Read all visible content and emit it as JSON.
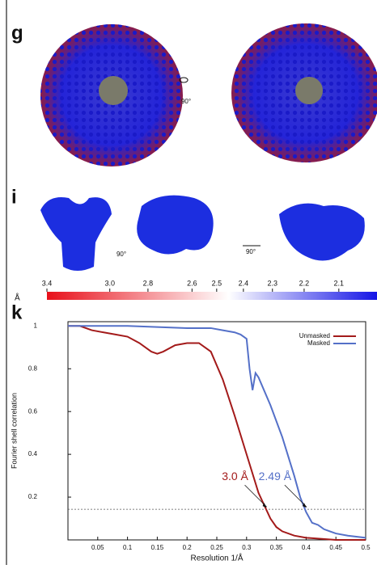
{
  "panels": [
    {
      "label": "g",
      "rotation": "90°"
    },
    {
      "label": "i",
      "rotations": [
        "90°",
        "90°"
      ]
    },
    {
      "label": "k"
    }
  ],
  "colorbar": {
    "unit": "Å",
    "scale": "reciprocal",
    "lim": [
      3.4,
      2.0
    ],
    "colors": [
      "#e8101a",
      "#ffffff",
      "#1414e6"
    ],
    "color_stops": [
      0,
      0.55,
      1
    ],
    "ticks": [
      3.4,
      {
        "value": 3.0,
        "label": "3.0"
      },
      2.8,
      2.6,
      2.5,
      2.4,
      2.3,
      2.2,
      2.1
    ]
  },
  "chart_data": {
    "type": "line",
    "xlabel": "Resolution 1/Å",
    "ylabel": "Fourier shell correlation",
    "xlim": [
      0,
      0.5
    ],
    "ylim": [
      0,
      1.02
    ],
    "xticks": [
      0.05,
      0.1,
      0.15,
      0.2,
      0.25,
      0.3,
      0.35,
      0.4,
      0.45,
      0.5
    ],
    "yticks": [
      0.2,
      0.4,
      0.6,
      0.8,
      1
    ],
    "reference_line": 0.143,
    "legend": "upper right",
    "series": [
      {
        "name": "Unmasked",
        "color": "#a31a1a",
        "x": [
          0,
          0.02,
          0.04,
          0.06,
          0.08,
          0.1,
          0.12,
          0.14,
          0.15,
          0.16,
          0.18,
          0.2,
          0.22,
          0.24,
          0.26,
          0.28,
          0.3,
          0.32,
          0.33,
          0.34,
          0.35,
          0.36,
          0.38,
          0.4,
          0.45,
          0.5
        ],
        "values": [
          1,
          1,
          0.98,
          0.97,
          0.96,
          0.95,
          0.92,
          0.88,
          0.87,
          0.88,
          0.91,
          0.92,
          0.92,
          0.88,
          0.75,
          0.58,
          0.4,
          0.22,
          0.16,
          0.1,
          0.06,
          0.04,
          0.02,
          0.01,
          0,
          0
        ]
      },
      {
        "name": "Masked",
        "color": "#5470c8",
        "x": [
          0,
          0.1,
          0.2,
          0.24,
          0.26,
          0.28,
          0.29,
          0.3,
          0.305,
          0.31,
          0.315,
          0.32,
          0.34,
          0.36,
          0.38,
          0.39,
          0.4,
          0.41,
          0.42,
          0.43,
          0.44,
          0.45,
          0.47,
          0.5
        ],
        "values": [
          1,
          1,
          0.99,
          0.99,
          0.98,
          0.97,
          0.96,
          0.94,
          0.8,
          0.7,
          0.78,
          0.76,
          0.63,
          0.48,
          0.3,
          0.2,
          0.13,
          0.08,
          0.07,
          0.05,
          0.04,
          0.03,
          0.02,
          0.01
        ]
      }
    ],
    "annotations": [
      {
        "text": "3.0 Å",
        "x": 0.335,
        "y": 0.143,
        "series": 0
      },
      {
        "text": "2.49 Å",
        "x": 0.402,
        "y": 0.143,
        "series": 1
      }
    ]
  }
}
